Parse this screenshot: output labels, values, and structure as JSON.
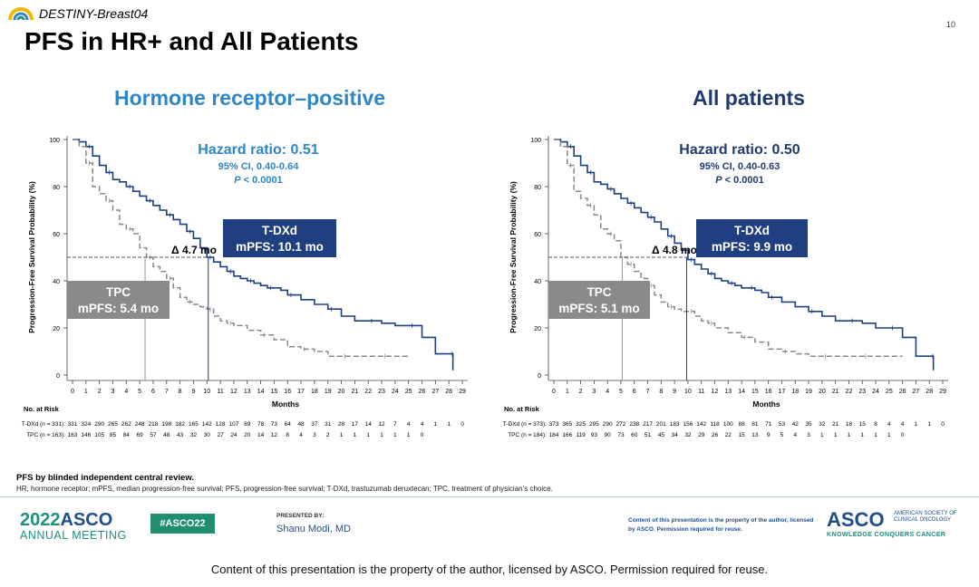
{
  "header": {
    "brand": "DESTINY-Breast04",
    "title": "PFS in HR+ and All Patients",
    "page_number": "10"
  },
  "colors": {
    "tdxd": "#1f3f80",
    "tpc": "#888888",
    "hr_title": "#2f86c5",
    "all_title": "#1f3a70",
    "hr_stats": "#2f86c5",
    "all_stats": "#1f3a70",
    "tpc_box": "#8a8a8a",
    "tdxd_box": "#1f3f80"
  },
  "chart_data": [
    {
      "type": "line",
      "step": true,
      "panel_title": "Hormone receptor–positive",
      "ylabel": "Progression-Free Survival Probability (%)",
      "xlabel": "Months",
      "xlim": [
        0,
        29
      ],
      "ylim": [
        0,
        100
      ],
      "x_ticks": [
        0,
        1,
        2,
        3,
        4,
        5,
        6,
        7,
        8,
        9,
        10,
        11,
        12,
        13,
        14,
        15,
        16,
        17,
        18,
        19,
        20,
        21,
        22,
        23,
        24,
        25,
        26,
        27,
        28,
        29
      ],
      "y_ticks": [
        0,
        20,
        40,
        60,
        80,
        100
      ],
      "stats": {
        "hr_label": "Hazard ratio",
        "hr_value": "0.51",
        "ci": "95% CI, 0.40-0.64",
        "p_label": "P",
        "p_value": "< 0.0001"
      },
      "annotations": {
        "delta": "Δ 4.7 mo",
        "tdxd_name": "T-DXd",
        "tdxd_mpfs": "mPFS: 10.1 mo",
        "tpc_name": "TPC",
        "tpc_mpfs": "mPFS: 5.4 mo",
        "tdxd_median": 10.1,
        "tpc_median": 5.4
      },
      "series": [
        {
          "name": "T-DXd",
          "x": [
            0,
            0.5,
            1,
            1.5,
            2,
            2.5,
            3,
            3.5,
            4,
            4.5,
            5,
            5.5,
            6,
            6.5,
            7,
            7.5,
            8,
            8.5,
            9,
            9.5,
            10,
            10.5,
            11,
            11.5,
            12,
            12.5,
            13,
            13.5,
            14,
            14.5,
            15,
            15.5,
            16,
            17,
            18,
            19,
            20,
            21,
            22,
            23,
            24,
            25,
            26,
            27,
            28,
            28.3
          ],
          "y": [
            100,
            99,
            97,
            93,
            89,
            86,
            83,
            82,
            80,
            78,
            76,
            74,
            72,
            70,
            68,
            66,
            64,
            61,
            58,
            54,
            50,
            48,
            46,
            44,
            42,
            41,
            40,
            39,
            38,
            37,
            37,
            36,
            34,
            32,
            30,
            28,
            25,
            23,
            23,
            22,
            21,
            21,
            16,
            9,
            9,
            2
          ]
        },
        {
          "name": "TPC",
          "x": [
            0,
            0.5,
            1,
            1.5,
            2,
            2.5,
            3,
            3.5,
            4,
            4.5,
            5,
            5.5,
            6,
            6.5,
            7,
            7.5,
            8,
            8.5,
            9,
            9.5,
            10,
            10.5,
            11,
            11.5,
            12,
            13,
            14,
            15,
            16,
            17,
            18,
            19,
            20,
            21,
            22,
            23,
            24,
            25
          ],
          "y": [
            100,
            97,
            90,
            80,
            77,
            74,
            70,
            64,
            62,
            60,
            54,
            50,
            46,
            44,
            41,
            37,
            33,
            31,
            30,
            29,
            28,
            25,
            23,
            22,
            21,
            19,
            17,
            15,
            12,
            11,
            10,
            8,
            8,
            8,
            8,
            8,
            8,
            8
          ]
        }
      ],
      "risk_table": {
        "title": "No. at Risk",
        "rows": [
          {
            "label": "T-DXd (n = 331):",
            "values": [
              "331",
              "324",
              "290",
              "265",
              "262",
              "248",
              "218",
              "198",
              "182",
              "165",
              "142",
              "128",
              "107",
              "89",
              "78",
              "73",
              "64",
              "48",
              "37",
              "31",
              "28",
              "17",
              "14",
              "12",
              "7",
              "4",
              "4",
              "1",
              "1",
              "0"
            ]
          },
          {
            "label": "TPC (n = 163):",
            "values": [
              "163",
              "146",
              "105",
              "85",
              "84",
              "69",
              "57",
              "48",
              "43",
              "32",
              "30",
              "27",
              "24",
              "20",
              "14",
              "12",
              "8",
              "4",
              "3",
              "2",
              "1",
              "1",
              "1",
              "1",
              "1",
              "1",
              "0"
            ]
          }
        ]
      }
    },
    {
      "type": "line",
      "step": true,
      "panel_title": "All patients",
      "ylabel": "Progression-Free Survival Probability (%)",
      "xlabel": "Months",
      "xlim": [
        0,
        29
      ],
      "ylim": [
        0,
        100
      ],
      "x_ticks": [
        0,
        1,
        2,
        3,
        4,
        5,
        6,
        7,
        8,
        9,
        10,
        11,
        12,
        13,
        14,
        15,
        16,
        17,
        18,
        19,
        20,
        21,
        22,
        23,
        24,
        25,
        26,
        27,
        28,
        29
      ],
      "y_ticks": [
        0,
        20,
        40,
        60,
        80,
        100
      ],
      "stats": {
        "hr_label": "Hazard ratio",
        "hr_value": "0.50",
        "ci": "95% CI, 0.40-0.63",
        "p_label": "P",
        "p_value": "< 0.0001"
      },
      "annotations": {
        "delta": "Δ 4.8 mo",
        "tdxd_name": "T-DXd",
        "tdxd_mpfs": "mPFS: 9.9 mo",
        "tpc_name": "TPC",
        "tpc_mpfs": "mPFS: 5.1 mo",
        "tdxd_median": 9.9,
        "tpc_median": 5.1
      },
      "series": [
        {
          "name": "T-DXd",
          "x": [
            0,
            0.5,
            1,
            1.5,
            2,
            2.5,
            3,
            3.5,
            4,
            4.5,
            5,
            5.5,
            6,
            6.5,
            7,
            7.5,
            8,
            8.5,
            9,
            9.5,
            10,
            10.5,
            11,
            11.5,
            12,
            12.5,
            13,
            13.5,
            14,
            14.5,
            15,
            15.5,
            16,
            17,
            18,
            19,
            20,
            21,
            22,
            23,
            24,
            25,
            26,
            27,
            28,
            28.3
          ],
          "y": [
            100,
            99,
            97,
            93,
            89,
            86,
            82,
            81,
            79,
            77,
            75,
            73,
            71,
            69,
            67,
            65,
            62,
            59,
            56,
            53,
            49,
            47,
            45,
            43,
            41,
            40,
            39,
            38,
            37,
            37,
            36,
            35,
            33,
            31,
            29,
            27,
            25,
            23,
            23,
            22,
            20,
            20,
            16,
            8,
            8,
            2
          ]
        },
        {
          "name": "TPC",
          "x": [
            0,
            0.5,
            1,
            1.5,
            2,
            2.5,
            3,
            3.5,
            4,
            4.5,
            5,
            5.5,
            6,
            6.5,
            7,
            7.5,
            8,
            8.5,
            9,
            9.5,
            10,
            10.5,
            11,
            11.5,
            12,
            13,
            14,
            15,
            16,
            17,
            18,
            19,
            20,
            21,
            22,
            23,
            24,
            25,
            26
          ],
          "y": [
            100,
            97,
            89,
            78,
            75,
            72,
            68,
            62,
            60,
            57,
            50,
            47,
            44,
            41,
            38,
            34,
            31,
            29,
            28,
            27,
            27,
            25,
            23,
            22,
            20,
            18,
            16,
            14,
            11,
            10,
            9,
            8,
            8,
            8,
            8,
            8,
            8,
            8,
            8
          ]
        }
      ],
      "risk_table": {
        "title": "No. at Risk",
        "rows": [
          {
            "label": "T-DXd (n = 373):",
            "values": [
              "373",
              "365",
              "325",
              "295",
              "290",
              "272",
              "238",
              "217",
              "201",
              "183",
              "156",
              "142",
              "118",
              "100",
              "88",
              "81",
              "71",
              "53",
              "42",
              "35",
              "32",
              "21",
              "18",
              "15",
              "8",
              "4",
              "4",
              "1",
              "1",
              "0"
            ]
          },
          {
            "label": "TPC (n = 184):",
            "values": [
              "184",
              "166",
              "119",
              "93",
              "90",
              "73",
              "60",
              "51",
              "45",
              "34",
              "32",
              "29",
              "26",
              "22",
              "15",
              "13",
              "9",
              "5",
              "4",
              "3",
              "1",
              "1",
              "1",
              "1",
              "1",
              "1",
              "0"
            ]
          }
        ]
      }
    }
  ],
  "footnotes": {
    "bold": "PFS by blinded independent central review.",
    "abbrev": "HR, hormone receptor; mPFS, median progression-free survival; PFS, progression-free survival; T-DXd, trastuzumab deruxtecan; TPC, treatment of physician’s choice."
  },
  "footer": {
    "year": "2022",
    "asco": "ASCO",
    "meeting": "ANNUAL MEETING",
    "hashtag": "#ASCO22",
    "presented_by": "PRESENTED BY:",
    "presenter": "Shanu Modi, MD",
    "rights_small": "Content of this presentation is the property of the author, licensed by ASCO. Permission required for reuse.",
    "logo": "ASCO",
    "society": "AMERICAN SOCIETY OF CLINICAL ONCOLOGY",
    "tagline": "KNOWLEDGE CONQUERS CANCER",
    "rights": "Content of this presentation is the property of the author, licensed by ASCO. Permission required for reuse."
  }
}
